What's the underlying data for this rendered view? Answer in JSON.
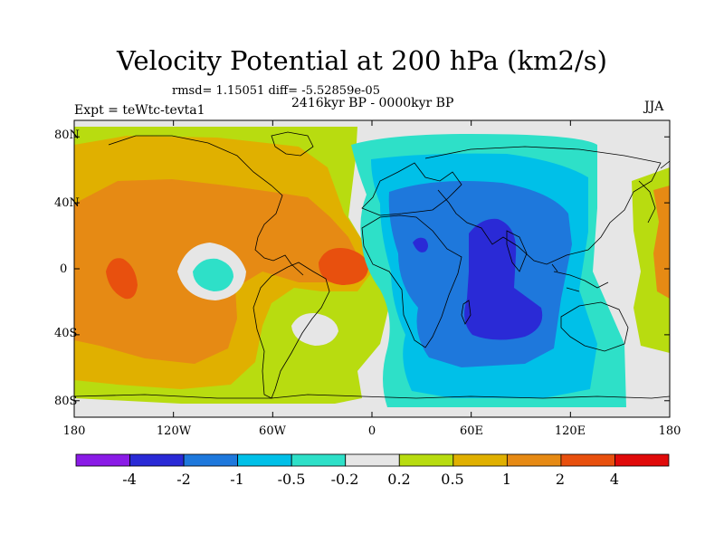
{
  "figure": {
    "title": "Velocity Potential at 200 hPa (km2/s)",
    "stats": "rmsd= 1.15051   diff= -5.52859e-05",
    "period": "2416kyr BP - 0000kyr BP",
    "experiment": "Expt = teWtc-tevta1",
    "season": "JJA"
  },
  "axes": {
    "xticks": [
      "180",
      "120W",
      "60W",
      "0",
      "60E",
      "120E",
      "180"
    ],
    "yticks": [
      "80N",
      "40N",
      "0",
      "40S",
      "80S"
    ]
  },
  "colorbar": {
    "labels": [
      "-4",
      "-2",
      "-1",
      "-0.5",
      "-0.2",
      "0.2",
      "0.5",
      "1",
      "2",
      "4"
    ],
    "colors": [
      "#8a1be6",
      "#2a2ad6",
      "#1e78dc",
      "#00c0e8",
      "#2ee0c8",
      "#e6e6e6",
      "#b8dc10",
      "#e0b000",
      "#e68a14",
      "#e8500e",
      "#e00a0a"
    ]
  },
  "map_colors": {
    "background": "#e6e6e6",
    "pos_0.2": "#b8dc10",
    "pos_0.5": "#e0b000",
    "pos_1": "#e68a14",
    "pos_2": "#e8500e",
    "neg_0.2": "#2ee0c8",
    "neg_0.5": "#00c0e8",
    "neg_1": "#1e78dc",
    "neg_2": "#2a2ad6",
    "coast": "#000000"
  }
}
